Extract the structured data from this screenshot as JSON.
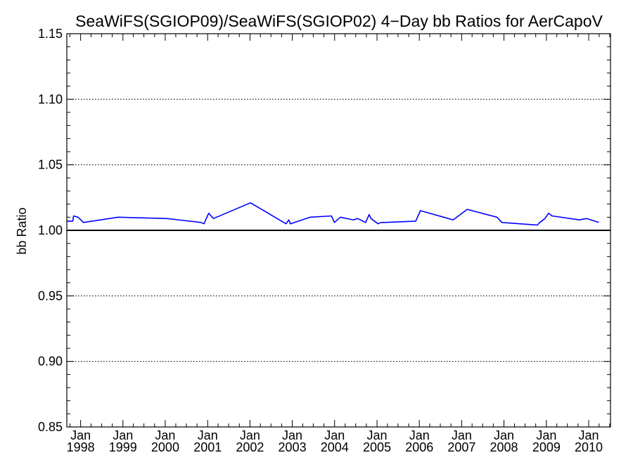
{
  "chart_data": {
    "type": "line",
    "title": "SeaWiFS(SGIOP09)/SeaWiFS(SGIOP02) 4−Day bb Ratios for AerCapoV",
    "xlabel": "",
    "ylabel": "bb Ratio",
    "ylim": [
      0.85,
      1.15
    ],
    "xlim": [
      "1997-09-04",
      "2010-07-08"
    ],
    "yticks": [
      "0.85",
      "0.90",
      "0.95",
      "1.00",
      "1.05",
      "1.10",
      "1.15"
    ],
    "xticks": [
      {
        "month": "Jan",
        "year": "1998"
      },
      {
        "month": "Jan",
        "year": "1999"
      },
      {
        "month": "Jan",
        "year": "2000"
      },
      {
        "month": "Jan",
        "year": "2001"
      },
      {
        "month": "Jan",
        "year": "2002"
      },
      {
        "month": "Jan",
        "year": "2003"
      },
      {
        "month": "Jan",
        "year": "2004"
      },
      {
        "month": "Jan",
        "year": "2005"
      },
      {
        "month": "Jan",
        "year": "2006"
      },
      {
        "month": "Jan",
        "year": "2007"
      },
      {
        "month": "Jan",
        "year": "2008"
      },
      {
        "month": "Jan",
        "year": "2009"
      },
      {
        "month": "Jan",
        "year": "2010"
      }
    ],
    "grid": "dotted horizontal",
    "reference_line": 1.0,
    "series": [
      {
        "color": "#0000ff",
        "x": [
          "1997-09-05",
          "1997-10-25",
          "1997-11-01",
          "1997-12-10",
          "1998-01-25",
          "1998-11-20",
          "2000-01-15",
          "2000-11-05",
          "2000-11-30",
          "2001-01-10",
          "2001-02-20",
          "2002-01-05",
          "2002-11-08",
          "2002-12-02",
          "2002-12-15",
          "2003-06-05",
          "2003-12-05",
          "2003-12-30",
          "2004-02-20",
          "2004-06-10",
          "2004-07-18",
          "2004-09-25",
          "2004-10-25",
          "2004-11-10",
          "2005-01-10",
          "2005-02-05",
          "2005-03-05",
          "2005-12-01",
          "2006-01-10",
          "2006-10-20",
          "2007-02-18",
          "2007-11-02",
          "2007-12-15",
          "2008-10-15",
          "2008-11-05",
          "2008-12-20",
          "2009-01-20",
          "2009-02-20",
          "2009-10-10",
          "2009-12-15",
          "2010-03-30"
        ],
        "values": [
          1.007,
          1.007,
          1.011,
          1.01,
          1.006,
          1.01,
          1.009,
          1.006,
          1.005,
          1.013,
          1.009,
          1.021,
          1.005,
          1.008,
          1.005,
          1.01,
          1.011,
          1.006,
          1.01,
          1.008,
          1.009,
          1.006,
          1.012,
          1.009,
          1.005,
          1.006,
          1.006,
          1.007,
          1.015,
          1.008,
          1.016,
          1.01,
          1.006,
          1.004,
          1.006,
          1.009,
          1.013,
          1.011,
          1.008,
          1.009,
          1.006
        ]
      }
    ]
  }
}
